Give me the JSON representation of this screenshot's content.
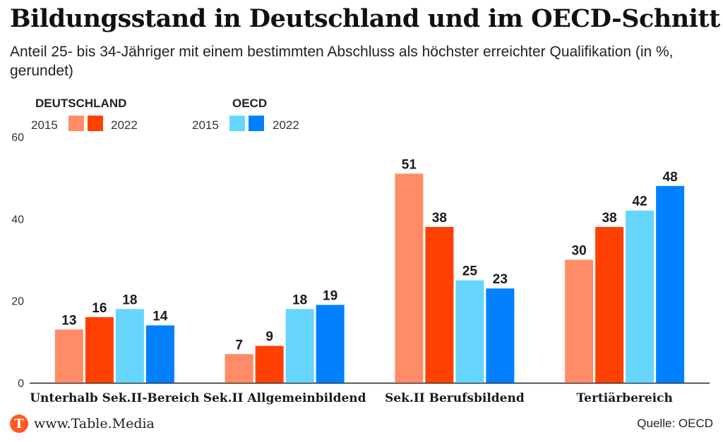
{
  "title": "Bildungsstand in Deutschland und im OECD-Schnitt",
  "subtitle": "Anteil 25- bis 34-Jähriger mit einem bestimmten Abschluss als höchster erreichter Qualifikation (in %, gerundet)",
  "legend": {
    "groups": [
      {
        "label": "DEUTSCHLAND",
        "year_left": "2015",
        "year_right": "2022",
        "color_2015": "#ff8c66",
        "color_2022": "#ff4000"
      },
      {
        "label": "OECD",
        "year_left": "2015",
        "year_right": "2022",
        "color_2015": "#66d6ff",
        "color_2022": "#0080ff"
      }
    ]
  },
  "footer": {
    "logo_letter": "T",
    "site": "www.Table.Media",
    "source": "Quelle: OECD"
  },
  "chart_data": {
    "type": "bar",
    "title": "Bildungsstand in Deutschland und im OECD-Schnitt",
    "xlabel": "",
    "ylabel": "",
    "ylim": [
      0,
      60
    ],
    "yticks": [
      0,
      20,
      40,
      60
    ],
    "grid": false,
    "legend_position": "top-left",
    "categories": [
      "Unterhalb Sek.II-Bereich",
      "Sek.II Allgemeinbildend",
      "Sek.II Berufsbildend",
      "Tertiärbereich"
    ],
    "series": [
      {
        "name": "Deutschland 2015",
        "color": "#ff8c66",
        "values": [
          13,
          7,
          51,
          30
        ]
      },
      {
        "name": "Deutschland 2022",
        "color": "#ff4000",
        "values": [
          16,
          9,
          38,
          38
        ]
      },
      {
        "name": "OECD 2015",
        "color": "#66d6ff",
        "values": [
          18,
          18,
          25,
          42
        ]
      },
      {
        "name": "OECD 2022",
        "color": "#0080ff",
        "values": [
          14,
          19,
          23,
          48
        ]
      }
    ]
  }
}
